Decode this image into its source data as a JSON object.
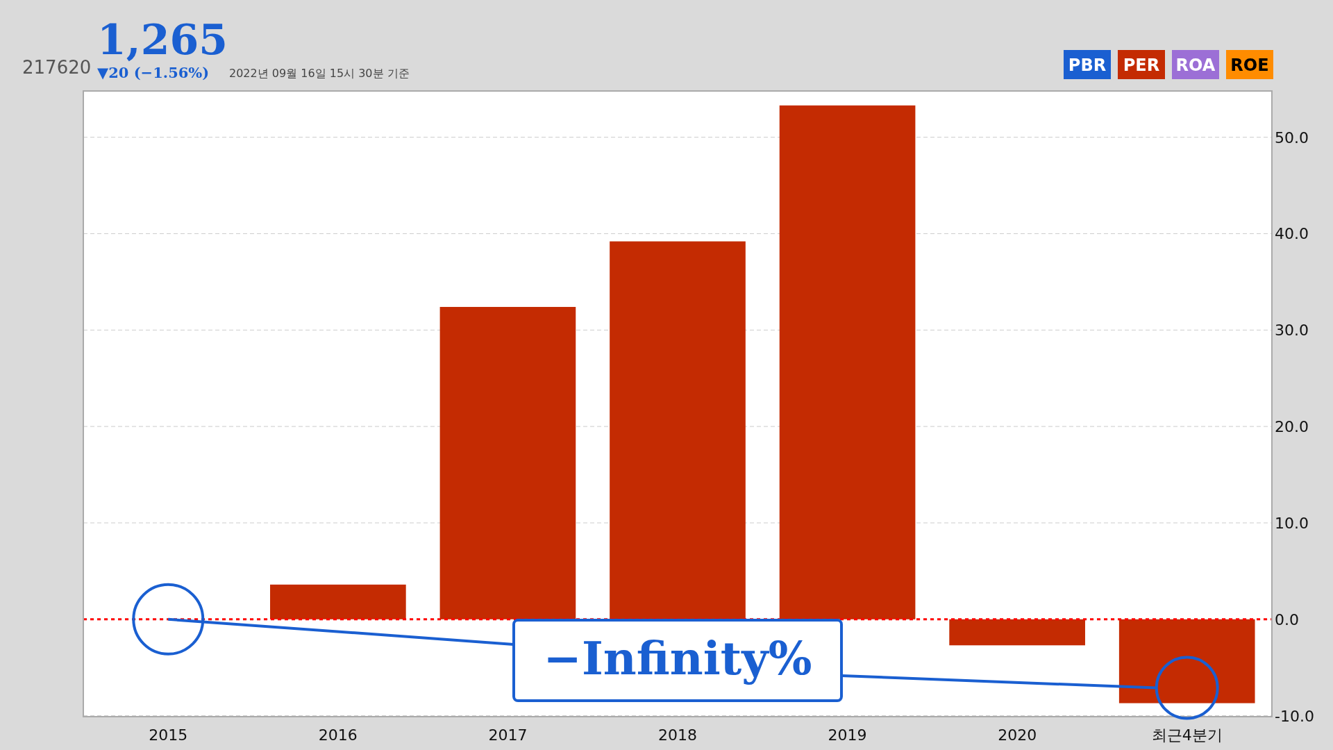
{
  "chart_data": {
    "type": "bar",
    "title": "1,265",
    "subtitle": "▼20 (−1.56%)",
    "categories": [
      "2015",
      "2016",
      "2017",
      "2018",
      "2019",
      "2020",
      "최근4분기"
    ],
    "series": [
      {
        "name": "PER",
        "color": "#c42b02",
        "values": [
          null,
          3.6,
          32.4,
          39.2,
          53.3,
          -2.7,
          -8.7
        ]
      }
    ],
    "ylim": [
      -10.1,
      54.8
    ],
    "yticks": [
      {
        "value": -10,
        "label": "-10.0"
      },
      {
        "value": 0,
        "label": "0.0"
      },
      {
        "value": 10,
        "label": "10.0"
      },
      {
        "value": 20,
        "label": "20.0"
      },
      {
        "value": 30,
        "label": "30.0"
      },
      {
        "value": 40,
        "label": "40.0"
      },
      {
        "value": 50,
        "label": "50.0"
      }
    ],
    "grid": "y",
    "legend": "top right",
    "ref_lines": [
      {
        "axis": "y",
        "value": 0,
        "color": "#ff0000",
        "line_style": "dotted"
      }
    ],
    "annotations": [
      "217620",
      "2022년 09월 16일 15시 30분 기준",
      "PBR",
      "ROA",
      "ROE",
      {
        "text": "−Infinity%",
        "x": "2015",
        "y": 0
      }
    ]
  }
}
